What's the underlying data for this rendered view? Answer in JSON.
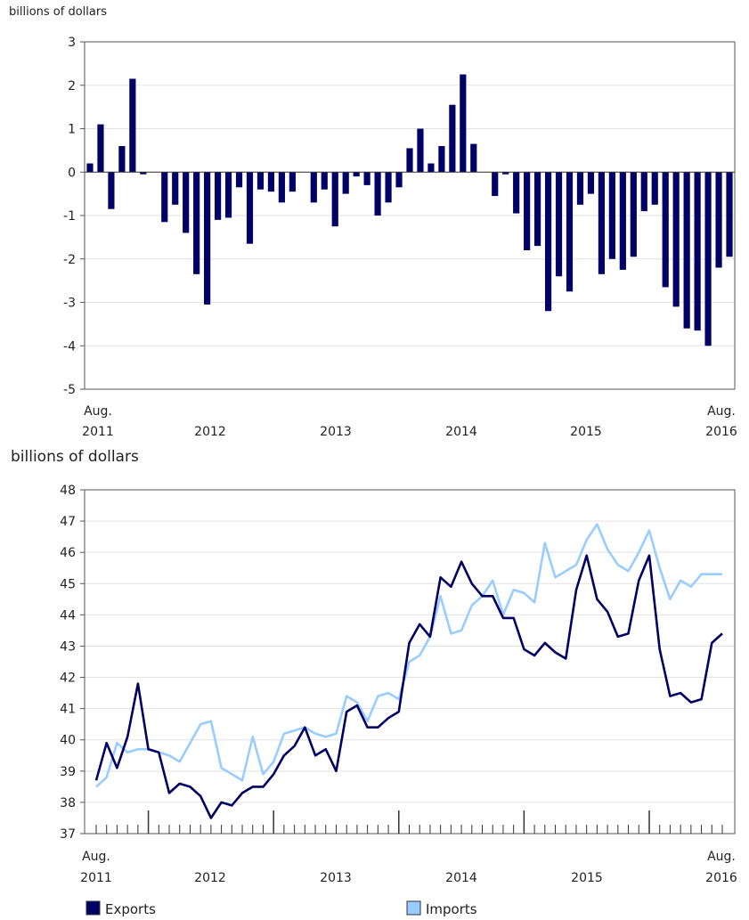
{
  "chart_data": [
    {
      "type": "bar",
      "ylabel": "billions of dollars",
      "ylim": [
        -5,
        3
      ],
      "y_ticks": [
        "3",
        "2",
        "1",
        "0",
        "-1",
        "-2",
        "-3",
        "-4",
        "-5"
      ],
      "x_labels": [
        {
          "month": "Aug.",
          "year": "2011"
        },
        {
          "month": "",
          "year": "2012"
        },
        {
          "month": "",
          "year": "2013"
        },
        {
          "month": "",
          "year": "2014"
        },
        {
          "month": "",
          "year": "2015"
        },
        {
          "month": "Aug.",
          "year": "2016"
        }
      ],
      "bar_color": "#000066",
      "values": [
        0.2,
        1.1,
        -0.85,
        0.6,
        2.15,
        -0.05,
        0,
        -1.15,
        -0.75,
        -1.4,
        -2.35,
        -3.05,
        -1.1,
        -1.05,
        -0.35,
        -1.65,
        -0.4,
        -0.45,
        -0.7,
        -0.45,
        0,
        -0.7,
        -0.4,
        -1.25,
        -0.5,
        -0.1,
        -0.3,
        -1.0,
        -0.7,
        -0.35,
        0.55,
        1.0,
        0.2,
        0.6,
        1.55,
        2.25,
        0.65,
        0,
        -0.55,
        -0.05,
        -0.95,
        -1.8,
        -1.7,
        -3.2,
        -2.4,
        -2.75,
        -0.75,
        -0.5,
        -2.35,
        -2.0,
        -2.25,
        -1.95,
        -0.9,
        -0.75,
        -2.65,
        -3.1,
        -3.6,
        -3.65,
        -4.0,
        -2.2,
        -1.95
      ]
    },
    {
      "type": "line",
      "ylabel": "billions of dollars",
      "ylim": [
        37,
        48
      ],
      "y_ticks": [
        "48",
        "47",
        "46",
        "45",
        "44",
        "43",
        "42",
        "41",
        "40",
        "39",
        "38",
        "37"
      ],
      "x_labels": [
        {
          "month": "Aug.",
          "year": "2011"
        },
        {
          "month": "",
          "year": "2012"
        },
        {
          "month": "",
          "year": "2013"
        },
        {
          "month": "",
          "year": "2014"
        },
        {
          "month": "",
          "year": "2015"
        },
        {
          "month": "Aug.",
          "year": "2016"
        }
      ],
      "series": [
        {
          "name": "Exports",
          "color": "#000066",
          "values": [
            38.7,
            39.9,
            39.1,
            40.1,
            41.8,
            39.7,
            39.6,
            38.3,
            38.6,
            38.5,
            38.2,
            37.5,
            38.0,
            37.9,
            38.3,
            38.5,
            38.5,
            38.9,
            39.5,
            39.8,
            40.4,
            39.5,
            39.7,
            39.0,
            40.9,
            41.1,
            40.4,
            40.4,
            40.7,
            40.9,
            43.1,
            43.7,
            43.3,
            45.2,
            44.9,
            45.7,
            45.0,
            44.6,
            44.6,
            43.9,
            43.9,
            42.9,
            42.7,
            43.1,
            42.8,
            42.6,
            44.8,
            45.9,
            44.5,
            44.1,
            43.3,
            43.4,
            45.1,
            45.9,
            42.9,
            41.4,
            41.5,
            41.2,
            41.3,
            43.1,
            43.4
          ]
        },
        {
          "name": "Imports",
          "color": "#99ccff",
          "values": [
            38.5,
            38.8,
            39.9,
            39.6,
            39.7,
            39.7,
            39.6,
            39.5,
            39.3,
            39.9,
            40.5,
            40.6,
            39.1,
            38.9,
            38.7,
            40.1,
            38.9,
            39.3,
            40.2,
            40.3,
            40.4,
            40.2,
            40.1,
            40.2,
            41.4,
            41.2,
            40.6,
            41.4,
            41.5,
            41.3,
            42.5,
            42.7,
            43.3,
            44.6,
            43.4,
            43.5,
            44.3,
            44.6,
            45.1,
            44.0,
            44.8,
            44.7,
            44.4,
            46.3,
            45.2,
            45.4,
            45.6,
            46.4,
            46.9,
            46.1,
            45.6,
            45.4,
            46.0,
            46.7,
            45.5,
            44.5,
            45.1,
            44.9,
            45.3,
            45.3,
            45.3
          ]
        }
      ],
      "legend_placement": "bottom"
    }
  ]
}
